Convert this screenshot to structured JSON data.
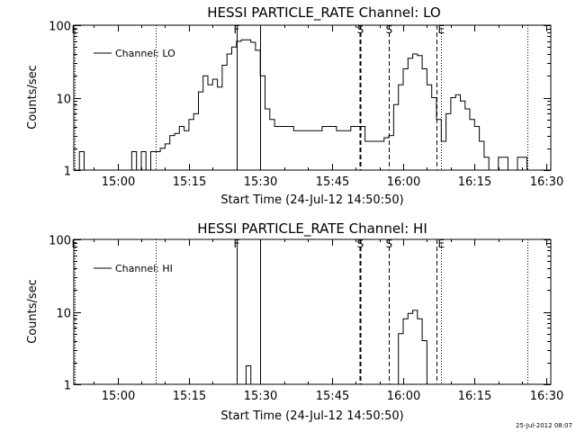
{
  "timestamp": "25-Jul-2012 08:07",
  "chart_data": [
    {
      "type": "line",
      "title": "HESSI PARTICLE_RATE Channel: LO",
      "xlabel": "Start Time (24-Jul-12 14:50:50)",
      "ylabel": "Counts/sec",
      "yscale": "log",
      "ylim": [
        1,
        100
      ],
      "xlim_minutes": [
        "14:50:50",
        "16:31:00"
      ],
      "x_ticks": [
        "15:00",
        "15:15",
        "15:30",
        "15:45",
        "16:00",
        "16:15",
        "16:30"
      ],
      "y_ticks": [
        "1",
        "10",
        "100"
      ],
      "legend": {
        "position": "top-left",
        "entries": [
          "Channel: LO"
        ]
      },
      "markers": [
        {
          "label": "E",
          "time": "14:51",
          "style": "dotted"
        },
        {
          "label": "",
          "time": "15:08",
          "style": "dotted"
        },
        {
          "label": "F",
          "time": "15:25",
          "style": "solid"
        },
        {
          "label": "",
          "time": "15:30",
          "style": "solid"
        },
        {
          "label": "S",
          "time": "15:51",
          "style": "thick-dashed"
        },
        {
          "label": "S",
          "time": "15:57",
          "style": "dashed"
        },
        {
          "label": "",
          "time": "16:07",
          "style": "dashed"
        },
        {
          "label": "E",
          "time": "16:08",
          "style": "dotted"
        },
        {
          "label": "",
          "time": "16:26",
          "style": "dotted"
        }
      ],
      "series": [
        {
          "name": "Channel: LO",
          "x": [
            "14:51",
            "14:52",
            "14:53",
            "14:55",
            "15:02",
            "15:03",
            "15:04",
            "15:05",
            "15:06",
            "15:07",
            "15:08",
            "15:09",
            "15:10",
            "15:11",
            "15:12",
            "15:13",
            "15:14",
            "15:15",
            "15:16",
            "15:17",
            "15:18",
            "15:19",
            "15:20",
            "15:21",
            "15:22",
            "15:23",
            "15:24",
            "15:25",
            "15:26",
            "15:27",
            "15:28",
            "15:29",
            "15:30",
            "15:31",
            "15:32",
            "15:33",
            "15:35",
            "15:37",
            "15:40",
            "15:43",
            "15:46",
            "15:49",
            "15:51",
            "15:52",
            "15:54",
            "15:56",
            "15:57",
            "15:58",
            "15:59",
            "16:00",
            "16:01",
            "16:02",
            "16:03",
            "16:04",
            "16:05",
            "16:06",
            "16:07",
            "16:08",
            "16:09",
            "16:10",
            "16:11",
            "16:12",
            "16:13",
            "16:14",
            "16:15",
            "16:16",
            "16:17",
            "16:18",
            "16:20",
            "16:22",
            "16:24",
            "16:26"
          ],
          "values": [
            1.0,
            1.8,
            1.0,
            1.0,
            1.0,
            1.8,
            1.0,
            1.8,
            1.0,
            1.8,
            1.8,
            2.0,
            2.3,
            3.0,
            3.2,
            4.0,
            3.5,
            5.0,
            6.0,
            12.0,
            20.0,
            15.0,
            18.0,
            14.0,
            28.0,
            40.0,
            50.0,
            60.0,
            63.0,
            63.0,
            58.0,
            45.0,
            20.0,
            7.0,
            5.0,
            4.0,
            4.0,
            3.5,
            3.5,
            4.0,
            3.5,
            4.0,
            4.0,
            2.5,
            2.5,
            2.8,
            3.0,
            8.0,
            15.0,
            25.0,
            35.0,
            40.0,
            38.0,
            25.0,
            15.0,
            10.0,
            5.0,
            2.5,
            6.0,
            10.0,
            11.0,
            9.0,
            7.0,
            5.0,
            4.0,
            2.5,
            1.5,
            1.0,
            1.5,
            1.0,
            1.5,
            1.0
          ]
        }
      ]
    },
    {
      "type": "line",
      "title": "HESSI PARTICLE_RATE Channel: HI",
      "xlabel": "Start Time (24-Jul-12 14:50:50)",
      "ylabel": "Counts/sec",
      "yscale": "log",
      "ylim": [
        1,
        100
      ],
      "x_ticks": [
        "15:00",
        "15:15",
        "15:30",
        "15:45",
        "16:00",
        "16:15",
        "16:30"
      ],
      "y_ticks": [
        "1",
        "10",
        "100"
      ],
      "legend": {
        "position": "top-left",
        "entries": [
          "Channel: HI"
        ]
      },
      "markers": [
        {
          "label": "E",
          "time": "14:51",
          "style": "dotted"
        },
        {
          "label": "",
          "time": "15:08",
          "style": "dotted"
        },
        {
          "label": "F",
          "time": "15:25",
          "style": "solid"
        },
        {
          "label": "",
          "time": "15:30",
          "style": "solid"
        },
        {
          "label": "S",
          "time": "15:51",
          "style": "thick-dashed"
        },
        {
          "label": "S",
          "time": "15:57",
          "style": "dashed"
        },
        {
          "label": "",
          "time": "16:07",
          "style": "dashed"
        },
        {
          "label": "E",
          "time": "16:08",
          "style": "dotted"
        },
        {
          "label": "",
          "time": "16:26",
          "style": "dotted"
        }
      ],
      "series": [
        {
          "name": "Channel: HI",
          "x": [
            "15:26",
            "15:27",
            "15:28",
            "15:58",
            "15:59",
            "16:00",
            "16:01",
            "16:02",
            "16:03",
            "16:04",
            "16:05"
          ],
          "values": [
            1.0,
            1.8,
            1.0,
            1.0,
            5.0,
            8.0,
            9.5,
            10.5,
            8.0,
            4.0,
            1.0
          ]
        }
      ]
    }
  ]
}
